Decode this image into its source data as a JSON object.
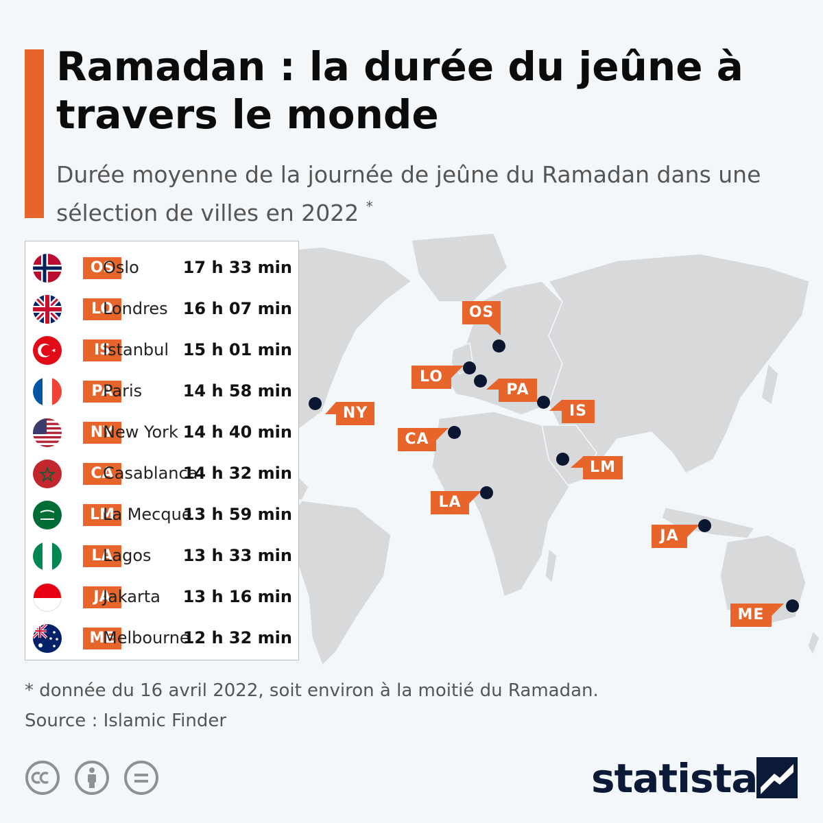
{
  "header": {
    "title": "Ramadan : la durée du jeûne à travers le monde",
    "subtitle": "Durée moyenne de la journée de jeûne du Ramadan dans une sélection de villes en 2022",
    "subtitle_mark": "*",
    "accent_color": "#e7642b"
  },
  "legend": {
    "rows": [
      {
        "code": "OS",
        "city": "Oslo",
        "duration": "17 h 33 min",
        "flag": "norway-flag-icon"
      },
      {
        "code": "LO",
        "city": "Londres",
        "duration": "16 h 07 min",
        "flag": "uk-flag-icon"
      },
      {
        "code": "IS",
        "city": "Istanbul",
        "duration": "15 h 01 min",
        "flag": "turkey-flag-icon"
      },
      {
        "code": "PA",
        "city": "Paris",
        "duration": "14 h 58 min",
        "flag": "france-flag-icon"
      },
      {
        "code": "NY",
        "city": "New York",
        "duration": "14 h 40 min",
        "flag": "usa-flag-icon"
      },
      {
        "code": "CA",
        "city": "Casablanca",
        "duration": "14 h 32 min",
        "flag": "morocco-flag-icon"
      },
      {
        "code": "LM",
        "city": "La Mecque",
        "duration": "13 h 59 min",
        "flag": "saudi-arabia-flag-icon"
      },
      {
        "code": "LA",
        "city": "Lagos",
        "duration": "13 h 33 min",
        "flag": "nigeria-flag-icon"
      },
      {
        "code": "JA",
        "city": "Jakarta",
        "duration": "13 h 16 min",
        "flag": "indonesia-flag-icon"
      },
      {
        "code": "ME",
        "city": "Melbourne",
        "duration": "12 h 32 min",
        "flag": "australia-flag-icon"
      }
    ]
  },
  "map": {
    "labels": {
      "OS": "OS",
      "LO": "LO",
      "PA": "PA",
      "IS": "IS",
      "NY": "NY",
      "CA": "CA",
      "LM": "LM",
      "LA": "LA",
      "JA": "JA",
      "ME": "ME"
    },
    "land_color": "#d8d9db",
    "pin_color": "#0b1630"
  },
  "footer": {
    "footnote": "* donnée du 16 avril 2022, soit environ à la moitié du Ramadan.",
    "source": "Source : Islamic Finder",
    "brand": "statista",
    "icons": [
      "cc-icon",
      "attribution-icon",
      "no-derivatives-icon"
    ]
  }
}
